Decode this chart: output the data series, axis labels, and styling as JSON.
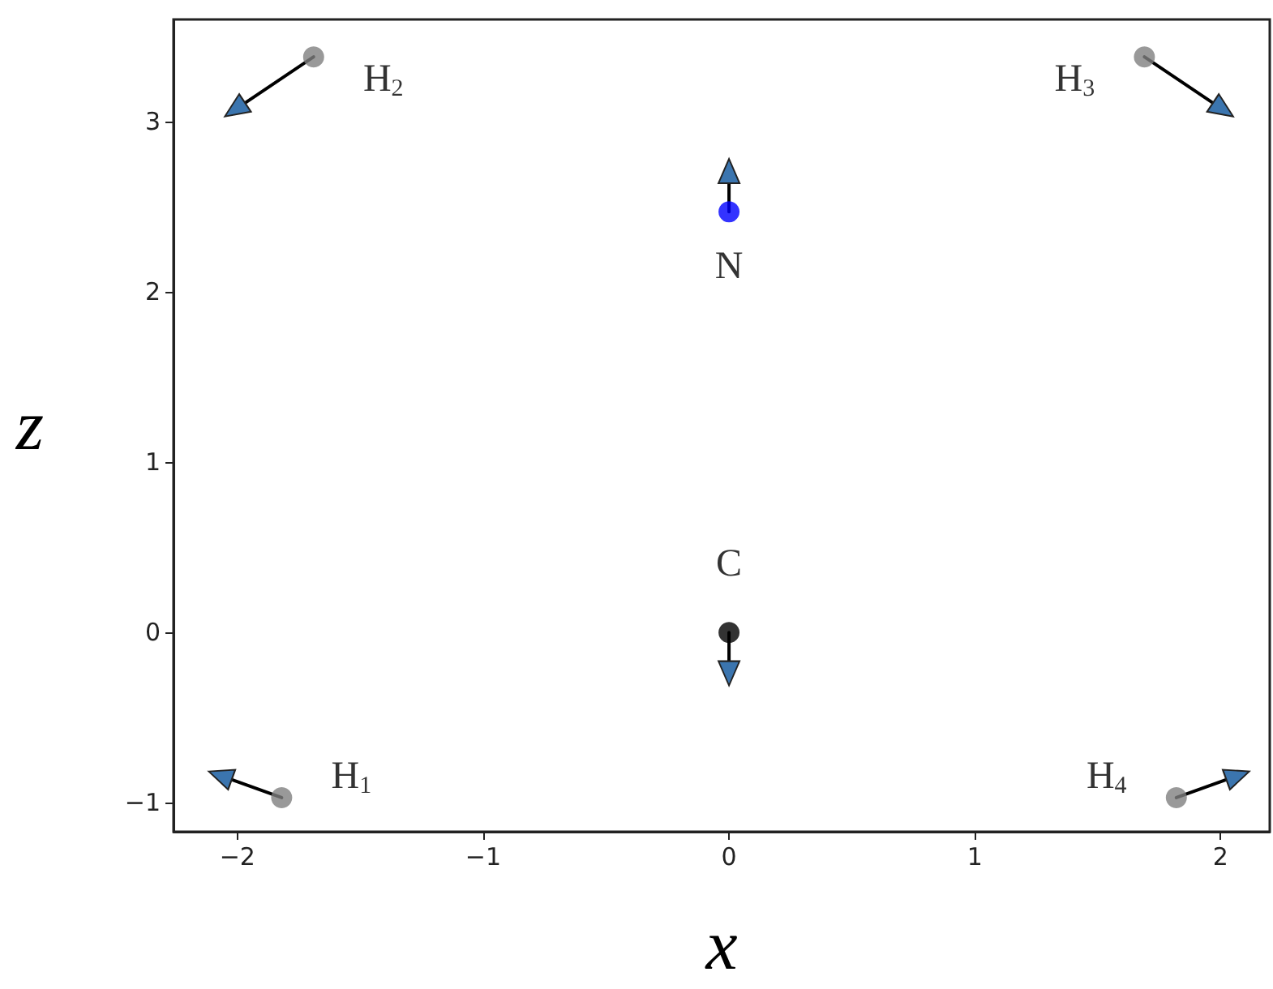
{
  "chart_data": {
    "type": "scatter",
    "xlabel": "x",
    "ylabel": "z",
    "xlim": [
      -2.26,
      2.2
    ],
    "ylim": [
      -1.17,
      3.6
    ],
    "xticks": [
      -2,
      -1,
      0,
      1,
      2
    ],
    "yticks": [
      -1,
      0,
      1,
      2,
      3
    ],
    "marker": "circle",
    "series": [
      {
        "type": "line",
        "color": "#000000",
        "colors": [
          "#000000",
          "#3b75af"
        ],
        "marker": "triangle",
        "x": [
          -1.69,
          -2.01
        ],
        "values": [
          3.38,
          3.07
        ]
      },
      {
        "type": "line",
        "color": "#000000",
        "colors": [
          "#000000",
          "#3b75af"
        ],
        "marker": "triangle",
        "x": [
          1.69,
          2.01
        ],
        "values": [
          3.38,
          3.07
        ]
      },
      {
        "type": "line",
        "color": "#000000",
        "colors": [
          "#000000",
          "#3b75af"
        ],
        "marker": "triangle",
        "x": [
          0,
          0
        ],
        "values": [
          2.47,
          2.71
        ]
      },
      {
        "type": "line",
        "color": "#000000",
        "colors": [
          "#000000",
          "#3b75af"
        ],
        "marker": "triangle",
        "x": [
          0,
          0
        ],
        "values": [
          0,
          -0.24
        ]
      },
      {
        "type": "line",
        "color": "#000000",
        "colors": [
          "#000000",
          "#3b75af"
        ],
        "marker": "triangle",
        "x": [
          -1.82,
          -2.07
        ],
        "values": [
          -0.97,
          -0.84
        ]
      },
      {
        "type": "line",
        "color": "#000000",
        "colors": [
          "#000000",
          "#3b75af"
        ],
        "marker": "triangle",
        "x": [
          1.82,
          2.07
        ],
        "values": [
          -0.97,
          -0.84
        ]
      },
      {
        "name": "H$_{2}$",
        "color": "#808080",
        "x": [
          -1.69
        ],
        "values": [
          3.38
        ]
      },
      {
        "name": "H$_{3}$",
        "color": "#808080",
        "x": [
          1.69
        ],
        "values": [
          3.38
        ]
      },
      {
        "name": "N",
        "color": "#0000ff",
        "x": [
          0
        ],
        "values": [
          2.47
        ]
      },
      {
        "name": "C",
        "color": "#000000",
        "x": [
          0
        ],
        "values": [
          0
        ]
      },
      {
        "name": "H$_{1}$",
        "color": "#808080",
        "x": [
          -1.82
        ],
        "values": [
          -0.97
        ]
      },
      {
        "name": "H$_{4}$",
        "color": "#808080",
        "x": [
          1.82
        ],
        "values": [
          -0.97
        ]
      }
    ]
  }
}
